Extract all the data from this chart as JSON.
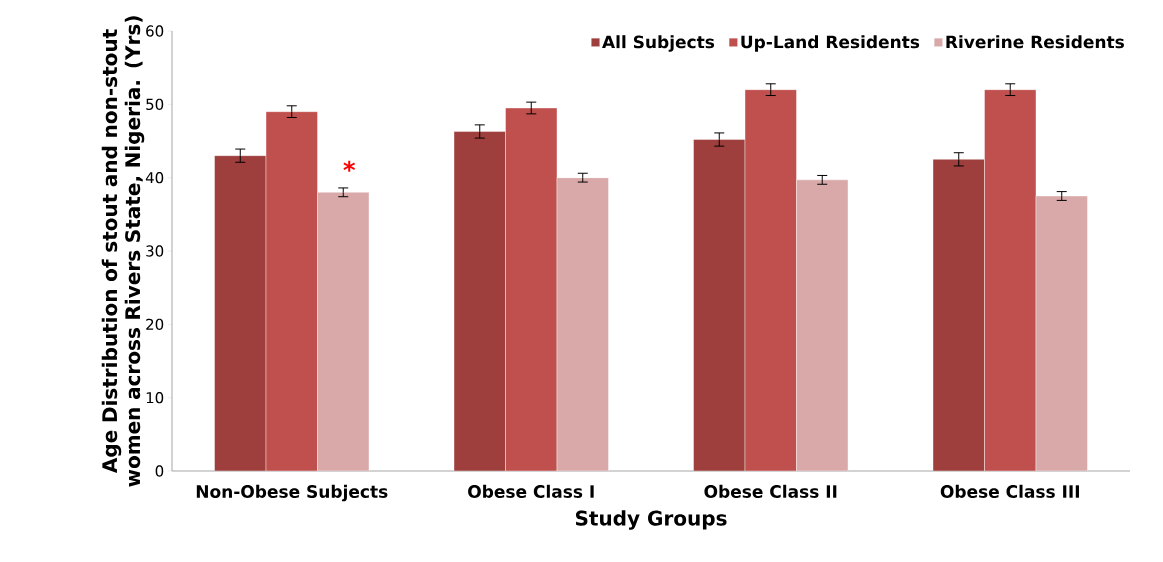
{
  "chart_data": {
    "type": "bar",
    "xlabel": "Study Groups",
    "ylabel": "Age Distribution of stout and non-stout women across Rivers State, Nigeria. (Yrs)",
    "categories": [
      "Non-Obese Subjects",
      "Obese Class I",
      "Obese Class II",
      "Obese Class III"
    ],
    "series": [
      {
        "name": "All Subjects",
        "color": "#9e3f3d",
        "values": [
          43,
          46.3,
          45.2,
          42.5
        ],
        "errors": [
          0.9,
          0.9,
          0.9,
          0.9
        ]
      },
      {
        "name": "Up-Land Residents",
        "color": "#c0504d",
        "values": [
          49,
          49.5,
          52,
          52
        ],
        "errors": [
          0.8,
          0.8,
          0.8,
          0.8
        ]
      },
      {
        "name": "Riverine Residents",
        "color": "#d9a9aa",
        "values": [
          38,
          40,
          39.7,
          37.5
        ],
        "errors": [
          0.6,
          0.6,
          0.6,
          0.6
        ]
      }
    ],
    "ylim": [
      0,
      60
    ],
    "yticks": [
      0,
      10,
      20,
      30,
      40,
      50,
      60
    ],
    "legend": "top right",
    "grid": false,
    "annotations": [
      "*"
    ]
  }
}
